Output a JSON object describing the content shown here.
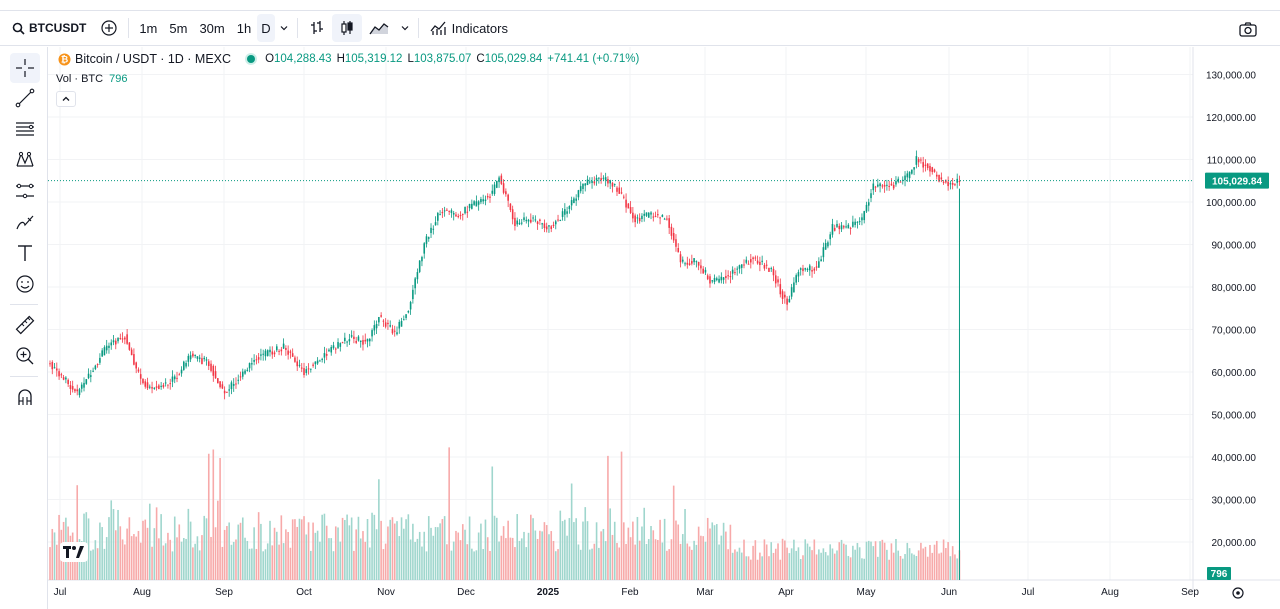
{
  "toolbar": {
    "symbol": "BTCUSDT",
    "intervals": [
      "1m",
      "5m",
      "30m",
      "1h",
      "D"
    ],
    "active_interval": "D",
    "indicators_label": "Indicators",
    "icons": [
      "search-icon",
      "add-symbol-icon",
      "chevron-down-icon",
      "bar-style-icon",
      "candle-style-icon",
      "area-style-icon",
      "indicators-icon",
      "camera-icon"
    ]
  },
  "legend": {
    "title": "Bitcoin / USDT · 1D · MEXC",
    "o_label": "O",
    "o": "104,288.43",
    "h_label": "H",
    "h": "105,319.12",
    "l_label": "L",
    "l": "103,875.07",
    "c_label": "C",
    "c": "105,029.84",
    "change": "+741.41 (+0.71%)",
    "vol_label": "Vol · BTC",
    "vol_value": "796"
  },
  "colors": {
    "up": "#089981",
    "down": "#f23645",
    "up_vol": "#9fd6cd",
    "down_vol": "#f7a9a9",
    "grid": "#f2f3f5",
    "axis_text": "#131722"
  },
  "left_tools": [
    "crosshair-icon",
    "trendline-icon",
    "fib-icon",
    "pattern-icon",
    "projection-icon",
    "brush-icon",
    "text-icon",
    "emoji-icon",
    "ruler-icon",
    "zoom-icon",
    "magnet-icon"
  ],
  "chart_data": {
    "type": "candlestick",
    "y_ticks": [
      "130,000.00",
      "120,000.00",
      "110,000.00",
      "100,000.00",
      "90,000.00",
      "80,000.00",
      "70,000.00",
      "60,000.00",
      "50,000.00",
      "40,000.00",
      "30,000.00",
      "20,000.00"
    ],
    "y_tick_values": [
      130000,
      120000,
      110000,
      100000,
      90000,
      80000,
      70000,
      60000,
      50000,
      40000,
      30000,
      20000
    ],
    "x_ticks": [
      "Jul",
      "Aug",
      "Sep",
      "Oct",
      "Nov",
      "Dec",
      "2025",
      "Feb",
      "Mar",
      "Apr",
      "May",
      "Jun",
      "Jul",
      "Aug",
      "Sep"
    ],
    "last_price": "105,029.84",
    "last_value": 105029.84,
    "vol_label": "796",
    "anchors": [
      [
        0,
        62000
      ],
      [
        12,
        55000
      ],
      [
        25,
        66000
      ],
      [
        33,
        68500
      ],
      [
        40,
        58000
      ],
      [
        45,
        56000
      ],
      [
        55,
        58500
      ],
      [
        62,
        64000
      ],
      [
        70,
        62000
      ],
      [
        77,
        55000
      ],
      [
        90,
        63000
      ],
      [
        103,
        66000
      ],
      [
        112,
        60000
      ],
      [
        122,
        64500
      ],
      [
        132,
        68000
      ],
      [
        140,
        67000
      ],
      [
        145,
        73000
      ],
      [
        152,
        69000
      ],
      [
        158,
        75000
      ],
      [
        165,
        90000
      ],
      [
        172,
        98000
      ],
      [
        180,
        97000
      ],
      [
        195,
        102000
      ],
      [
        198,
        106000
      ],
      [
        205,
        95000
      ],
      [
        213,
        96000
      ],
      [
        220,
        94000
      ],
      [
        228,
        98000
      ],
      [
        235,
        104000
      ],
      [
        243,
        106000
      ],
      [
        250,
        103000
      ],
      [
        258,
        96000
      ],
      [
        265,
        97000
      ],
      [
        272,
        96000
      ],
      [
        278,
        86000
      ],
      [
        285,
        86000
      ],
      [
        292,
        81000
      ],
      [
        300,
        83000
      ],
      [
        310,
        87000
      ],
      [
        318,
        84000
      ],
      [
        322,
        79000
      ],
      [
        325,
        76000
      ],
      [
        330,
        84000
      ],
      [
        338,
        84500
      ],
      [
        345,
        94000
      ],
      [
        352,
        94000
      ],
      [
        358,
        96000
      ],
      [
        363,
        104000
      ],
      [
        372,
        104000
      ],
      [
        378,
        106000
      ],
      [
        382,
        110000
      ],
      [
        388,
        108000
      ],
      [
        393,
        105000
      ],
      [
        398,
        104300
      ],
      [
        401,
        105030
      ]
    ],
    "volume_spikes": [
      [
        70,
        41000
      ],
      [
        72,
        42000
      ],
      [
        75,
        40000
      ],
      [
        145,
        35000
      ],
      [
        176,
        42500
      ],
      [
        195,
        38000
      ],
      [
        230,
        34000
      ],
      [
        246,
        40500
      ],
      [
        252,
        41500
      ],
      [
        275,
        33500
      ],
      [
        320,
        26000
      ]
    ]
  }
}
